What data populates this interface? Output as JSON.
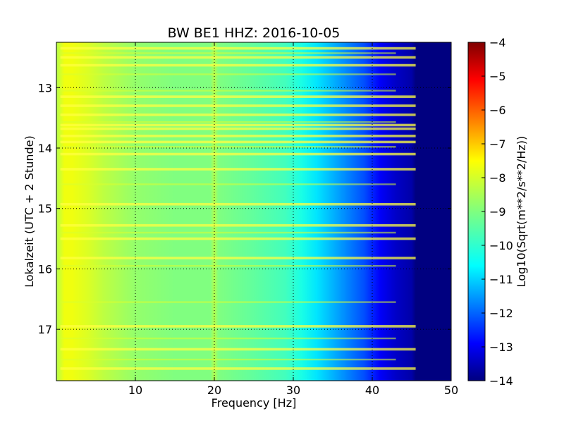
{
  "chart_data": {
    "type": "heatmap",
    "title": "BW BE1 HHZ: 2016-10-05",
    "xlabel": "Frequency [Hz]",
    "ylabel": "Lokalzeit (UTC + 2 Stunde)",
    "xlim": [
      0,
      50
    ],
    "ylim": [
      17.85,
      12.25
    ],
    "x_ticks": [
      10,
      20,
      30,
      40,
      50
    ],
    "y_ticks": [
      13,
      14,
      15,
      16,
      17
    ],
    "grid": true,
    "colormap": "jet",
    "colorbar": {
      "label": "Log10(Sqrt(m**2/s**2/Hz))",
      "range": [
        -14,
        -4
      ],
      "ticks": [
        -4,
        -5,
        -6,
        -7,
        -8,
        -9,
        -10,
        -11,
        -12,
        -13,
        -14
      ]
    },
    "background_profile": {
      "frequency_hz": [
        0,
        1,
        2,
        4,
        6,
        10,
        15,
        19.5,
        20,
        20.5,
        25,
        29,
        31,
        33,
        35,
        37,
        39,
        40,
        41,
        43,
        45,
        45.5,
        50
      ],
      "value": [
        -8.5,
        -7.9,
        -7.9,
        -8.1,
        -8.4,
        -8.8,
        -9.0,
        -9.0,
        -8.5,
        -9.0,
        -9.3,
        -9.6,
        -10.0,
        -10.5,
        -11.0,
        -11.5,
        -12.0,
        -12.4,
        -12.8,
        -13.3,
        -13.6,
        -14.0,
        -14.0
      ]
    },
    "strong_noise_rows_local_hour": [
      12.35,
      12.5,
      12.63,
      13.15,
      13.3,
      13.45,
      13.62,
      13.68,
      13.8,
      13.9,
      14.1,
      14.35,
      14.93,
      15.28,
      15.5,
      15.82,
      16.95,
      17.33,
      17.65
    ],
    "weak_noise_rows_local_hour": [
      12.43,
      12.78,
      13.05,
      13.57,
      13.98,
      14.6,
      15.4,
      15.95,
      16.55,
      17.15,
      17.5
    ]
  }
}
